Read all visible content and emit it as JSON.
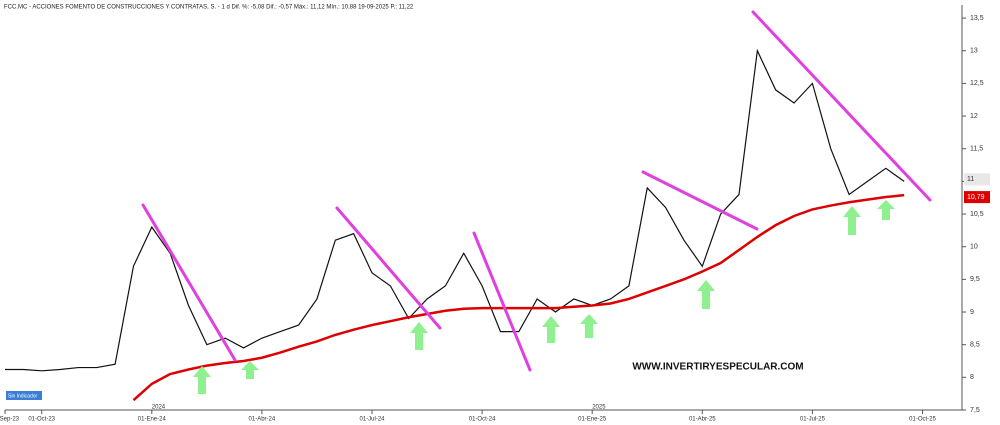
{
  "chart_data": {
    "type": "line",
    "title": "FCC.MC - ACCIONES FOMENTO DE CONSTRUCCIONES Y CONTRATAS, S. - 1 d Dif. %: -5,08 Dif.: -0,57 Máx.: 11,12 Mín.: 10,88 19-09-2025 P.: 11,22",
    "watermark": "WWW.INVERTIRYESPECULAR.COM",
    "indicator_label": "Sin Indicador",
    "year_labels": [
      {
        "index": 8,
        "label": "2024"
      },
      {
        "index": 32,
        "label": "2025"
      }
    ],
    "categories": [
      "01-Sep-23",
      null,
      "01-Oct-23",
      null,
      null,
      null,
      null,
      null,
      "01-Ene-24",
      null,
      null,
      null,
      null,
      null,
      "01-Abr-24",
      null,
      null,
      null,
      null,
      null,
      "01-Jul-24",
      null,
      null,
      null,
      null,
      null,
      "01-Oct-24",
      null,
      null,
      null,
      null,
      null,
      "01-Ene-25",
      null,
      null,
      null,
      null,
      null,
      "01-Abr-25",
      null,
      null,
      null,
      null,
      null,
      "01-Jul-25",
      null,
      null,
      null,
      null,
      null,
      "01-Oct-25",
      null
    ],
    "series": [
      {
        "name": "FCC.MC",
        "color": "#111111",
        "values": [
          8.12,
          8.12,
          8.1,
          8.12,
          8.15,
          8.15,
          8.2,
          9.7,
          10.3,
          9.9,
          9.1,
          8.5,
          8.6,
          8.45,
          8.6,
          8.7,
          8.8,
          9.2,
          10.1,
          10.2,
          9.6,
          9.4,
          8.9,
          9.2,
          9.4,
          9.9,
          9.4,
          8.7,
          8.7,
          9.2,
          9.0,
          9.2,
          9.1,
          9.2,
          9.4,
          10.9,
          10.6,
          10.1,
          9.7,
          10.5,
          10.8,
          13.0,
          12.4,
          12.2,
          12.5,
          11.5,
          10.8,
          11.0,
          11.2,
          11,
          null,
          null
        ],
        "value_labels": [
          null,
          null,
          null,
          null,
          null,
          null,
          null,
          null,
          null,
          null,
          null,
          null,
          null,
          null,
          null,
          null,
          null,
          null,
          null,
          null,
          null,
          null,
          null,
          null,
          null,
          null,
          null,
          null,
          null,
          null,
          null,
          null,
          null,
          null,
          null,
          null,
          null,
          null,
          null,
          null,
          null,
          null,
          null,
          null,
          null,
          null,
          null,
          null,
          null,
          "11",
          null,
          null
        ]
      },
      {
        "name": "Media móvil",
        "color": "#dd0000",
        "values": [
          null,
          null,
          null,
          null,
          null,
          null,
          null,
          7.65,
          7.9,
          8.05,
          8.12,
          8.18,
          8.22,
          8.25,
          8.3,
          8.38,
          8.47,
          8.55,
          8.65,
          8.73,
          8.8,
          8.86,
          8.92,
          8.97,
          9.02,
          9.05,
          9.06,
          9.06,
          9.06,
          9.06,
          9.06,
          9.08,
          9.1,
          9.13,
          9.2,
          9.3,
          9.4,
          9.5,
          9.62,
          9.75,
          9.95,
          10.15,
          10.33,
          10.47,
          10.57,
          10.63,
          10.68,
          10.72,
          10.76,
          10.79,
          null,
          null
        ],
        "value_labels": [
          null,
          null,
          null,
          null,
          null,
          null,
          null,
          null,
          null,
          null,
          null,
          null,
          null,
          null,
          null,
          null,
          null,
          null,
          null,
          null,
          null,
          null,
          null,
          null,
          null,
          null,
          null,
          null,
          null,
          null,
          null,
          null,
          null,
          null,
          null,
          null,
          null,
          null,
          null,
          null,
          null,
          null,
          null,
          null,
          null,
          null,
          null,
          null,
          null,
          "10,79",
          null,
          null
        ]
      }
    ],
    "ylim": [
      7.5,
      13.7
    ],
    "yticks": [
      {
        "value": 7.5,
        "label": "7,5"
      },
      8,
      {
        "value": 8.5,
        "label": "8,5"
      },
      9,
      {
        "value": 9.5,
        "label": "9,5"
      },
      10,
      {
        "value": 10.5,
        "label": "10,5"
      },
      11,
      {
        "value": 11.5,
        "label": "11,5"
      },
      12,
      {
        "value": 12.5,
        "label": "12,5"
      },
      13,
      {
        "value": 13.5,
        "label": "13,5"
      }
    ],
    "grid": false
  }
}
